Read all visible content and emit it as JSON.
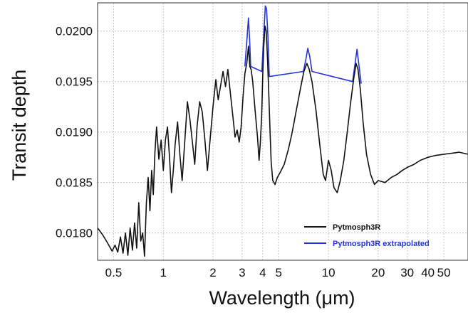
{
  "chart_data": {
    "type": "line",
    "title": "",
    "xlabel": "Wavelength (μm)",
    "ylabel": "Transit depth",
    "xscale": "log",
    "xlim": [
      0.4,
      70
    ],
    "ylim": [
      0.01773,
      0.02028
    ],
    "grid": true,
    "legend_position": "bottom-right",
    "xticks": [
      {
        "value": 0.5,
        "label": "0.5"
      },
      {
        "value": 1,
        "label": "1"
      },
      {
        "value": 2,
        "label": "2"
      },
      {
        "value": 3,
        "label": "3"
      },
      {
        "value": 4,
        "label": "4"
      },
      {
        "value": 5,
        "label": "5"
      },
      {
        "value": 10,
        "label": "10"
      },
      {
        "value": 20,
        "label": "20"
      },
      {
        "value": 30,
        "label": "30"
      },
      {
        "value": 40,
        "label": "40"
      },
      {
        "value": 50,
        "label": "50"
      }
    ],
    "yticks": [
      {
        "value": 0.018,
        "label": "0.0180"
      },
      {
        "value": 0.0185,
        "label": "0.0185"
      },
      {
        "value": 0.019,
        "label": "0.0190"
      },
      {
        "value": 0.0195,
        "label": "0.0195"
      },
      {
        "value": 0.02,
        "label": "0.0200"
      }
    ],
    "series": [
      {
        "name": "Pytmosph3R extrapolated",
        "color": "#2233dd",
        "points": [
          [
            3.12,
            0.01965
          ],
          [
            3.22,
            0.01995
          ],
          [
            3.28,
            0.02013
          ],
          [
            3.33,
            0.01992
          ],
          [
            3.38,
            0.01965
          ],
          [
            3.95,
            0.0196
          ],
          [
            4.05,
            0.01995
          ],
          [
            4.15,
            0.02025
          ],
          [
            4.22,
            0.02022
          ],
          [
            4.3,
            0.01995
          ],
          [
            4.38,
            0.01955
          ],
          [
            7.05,
            0.0196
          ],
          [
            7.3,
            0.01972
          ],
          [
            7.5,
            0.01983
          ],
          [
            7.7,
            0.01975
          ],
          [
            7.95,
            0.0196
          ],
          [
            14.0,
            0.0195
          ],
          [
            14.5,
            0.01968
          ],
          [
            14.9,
            0.01982
          ],
          [
            15.3,
            0.01966
          ],
          [
            15.8,
            0.01948
          ]
        ]
      },
      {
        "name": "Pytmosph3R",
        "color": "#111111",
        "points": [
          [
            0.4,
            0.01805
          ],
          [
            0.43,
            0.01798
          ],
          [
            0.46,
            0.0179
          ],
          [
            0.49,
            0.01782
          ],
          [
            0.51,
            0.01788
          ],
          [
            0.53,
            0.01781
          ],
          [
            0.55,
            0.01796
          ],
          [
            0.57,
            0.0178
          ],
          [
            0.59,
            0.018
          ],
          [
            0.61,
            0.01778
          ],
          [
            0.63,
            0.01805
          ],
          [
            0.65,
            0.01783
          ],
          [
            0.67,
            0.0181
          ],
          [
            0.69,
            0.01785
          ],
          [
            0.71,
            0.0183
          ],
          [
            0.73,
            0.01792
          ],
          [
            0.75,
            0.018
          ],
          [
            0.77,
            0.01777
          ],
          [
            0.79,
            0.0183
          ],
          [
            0.81,
            0.01855
          ],
          [
            0.83,
            0.01822
          ],
          [
            0.85,
            0.01862
          ],
          [
            0.87,
            0.01838
          ],
          [
            0.89,
            0.0188
          ],
          [
            0.91,
            0.01905
          ],
          [
            0.94,
            0.01873
          ],
          [
            0.97,
            0.01892
          ],
          [
            1.0,
            0.01862
          ],
          [
            1.03,
            0.01892
          ],
          [
            1.06,
            0.01905
          ],
          [
            1.09,
            0.01876
          ],
          [
            1.12,
            0.0184
          ],
          [
            1.15,
            0.01862
          ],
          [
            1.18,
            0.01888
          ],
          [
            1.22,
            0.0191
          ],
          [
            1.26,
            0.01878
          ],
          [
            1.3,
            0.01852
          ],
          [
            1.35,
            0.01892
          ],
          [
            1.4,
            0.0193
          ],
          [
            1.45,
            0.01912
          ],
          [
            1.5,
            0.0189
          ],
          [
            1.55,
            0.01868
          ],
          [
            1.6,
            0.01905
          ],
          [
            1.66,
            0.0193
          ],
          [
            1.72,
            0.0192
          ],
          [
            1.78,
            0.01895
          ],
          [
            1.85,
            0.01862
          ],
          [
            1.92,
            0.01892
          ],
          [
            2.0,
            0.01925
          ],
          [
            2.08,
            0.01952
          ],
          [
            2.15,
            0.01932
          ],
          [
            2.22,
            0.01945
          ],
          [
            2.3,
            0.0196
          ],
          [
            2.38,
            0.01945
          ],
          [
            2.46,
            0.01962
          ],
          [
            2.55,
            0.01938
          ],
          [
            2.64,
            0.01915
          ],
          [
            2.72,
            0.01895
          ],
          [
            2.8,
            0.01902
          ],
          [
            2.88,
            0.0189
          ],
          [
            2.96,
            0.01905
          ],
          [
            3.04,
            0.01935
          ],
          [
            3.12,
            0.01958
          ],
          [
            3.2,
            0.01968
          ],
          [
            3.28,
            0.01985
          ],
          [
            3.34,
            0.01965
          ],
          [
            3.4,
            0.01962
          ],
          [
            3.48,
            0.0195
          ],
          [
            3.56,
            0.0193
          ],
          [
            3.64,
            0.01912
          ],
          [
            3.72,
            0.01895
          ],
          [
            3.8,
            0.01872
          ],
          [
            3.87,
            0.0189
          ],
          [
            3.94,
            0.01915
          ],
          [
            4.0,
            0.01955
          ],
          [
            4.06,
            0.01985
          ],
          [
            4.13,
            0.02005
          ],
          [
            4.2,
            0.02
          ],
          [
            4.27,
            0.01975
          ],
          [
            4.34,
            0.01945
          ],
          [
            4.42,
            0.01905
          ],
          [
            4.5,
            0.0187
          ],
          [
            4.6,
            0.01852
          ],
          [
            4.75,
            0.01848
          ],
          [
            4.9,
            0.01855
          ],
          [
            5.1,
            0.0186
          ],
          [
            5.4,
            0.01868
          ],
          [
            5.7,
            0.01882
          ],
          [
            6.0,
            0.01898
          ],
          [
            6.4,
            0.01922
          ],
          [
            6.8,
            0.01945
          ],
          [
            7.1,
            0.0196
          ],
          [
            7.4,
            0.01968
          ],
          [
            7.65,
            0.01962
          ],
          [
            7.95,
            0.0195
          ],
          [
            8.4,
            0.01922
          ],
          [
            8.9,
            0.01885
          ],
          [
            9.3,
            0.01858
          ],
          [
            9.6,
            0.01852
          ],
          [
            10.0,
            0.01872
          ],
          [
            10.4,
            0.01862
          ],
          [
            10.8,
            0.01845
          ],
          [
            11.3,
            0.0184
          ],
          [
            11.8,
            0.01852
          ],
          [
            12.4,
            0.01872
          ],
          [
            13.0,
            0.019
          ],
          [
            13.6,
            0.01928
          ],
          [
            14.2,
            0.01952
          ],
          [
            14.7,
            0.01968
          ],
          [
            15.1,
            0.01962
          ],
          [
            15.6,
            0.01942
          ],
          [
            16.2,
            0.0191
          ],
          [
            17.0,
            0.01878
          ],
          [
            18.0,
            0.01858
          ],
          [
            19.0,
            0.01848
          ],
          [
            20.0,
            0.01852
          ],
          [
            22.0,
            0.0185
          ],
          [
            24.0,
            0.01855
          ],
          [
            26.0,
            0.01858
          ],
          [
            28.0,
            0.01862
          ],
          [
            30.0,
            0.01865
          ],
          [
            33.0,
            0.01868
          ],
          [
            36.0,
            0.01872
          ],
          [
            40.0,
            0.01875
          ],
          [
            45.0,
            0.01877
          ],
          [
            50.0,
            0.01878
          ],
          [
            56.0,
            0.01879
          ],
          [
            62.0,
            0.0188
          ],
          [
            70.0,
            0.01878
          ]
        ]
      }
    ]
  }
}
